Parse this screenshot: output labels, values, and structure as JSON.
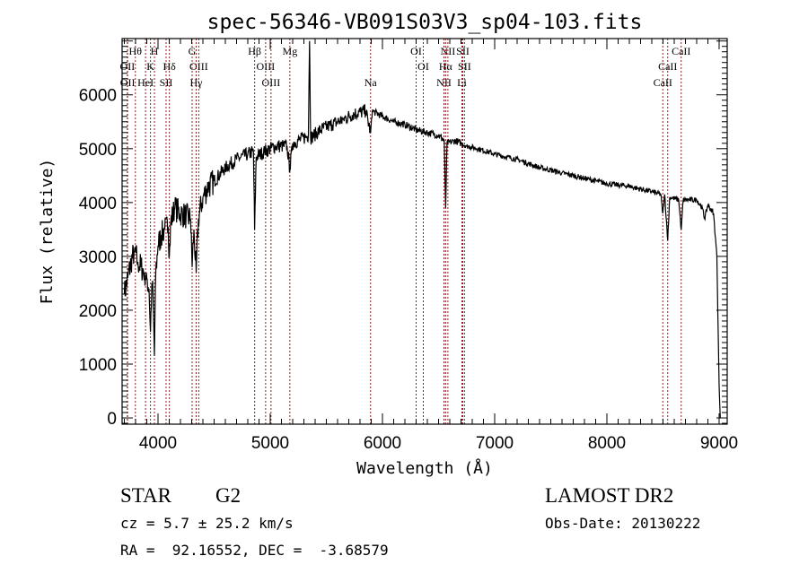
{
  "chart_data": {
    "type": "line",
    "title": "spec-56346-VB091S03V3_sp04-103.fits",
    "xlabel": "Wavelength (Å)",
    "ylabel": "Flux (relative)",
    "xlim": [
      3680,
      9072
    ],
    "ylim": [
      -116,
      7045
    ],
    "xticks": [
      4000,
      5000,
      6000,
      7000,
      8000,
      9000
    ],
    "xtick_labels": [
      "4000",
      "5000",
      "6000",
      "7000",
      "8000",
      "9000"
    ],
    "yticks": [
      0,
      1000,
      2000,
      3000,
      4000,
      5000,
      6000
    ],
    "ytick_labels": [
      "0",
      "1000",
      "2000",
      "3000",
      "4000",
      "5000",
      "6000"
    ],
    "grid": false,
    "series": [
      {
        "name": "flux",
        "points": [
          [
            3700,
            2300
          ],
          [
            3730,
            2600
          ],
          [
            3760,
            2900
          ],
          [
            3790,
            3100
          ],
          [
            3820,
            2900
          ],
          [
            3850,
            2800
          ],
          [
            3880,
            2700
          ],
          [
            3900,
            2600
          ],
          [
            3920,
            2400
          ],
          [
            3933,
            1600
          ],
          [
            3945,
            2500
          ],
          [
            3955,
            2300
          ],
          [
            3968,
            1150
          ],
          [
            3980,
            2700
          ],
          [
            4000,
            3200
          ],
          [
            4030,
            3400
          ],
          [
            4060,
            3500
          ],
          [
            4090,
            3550
          ],
          [
            4101,
            3000
          ],
          [
            4115,
            3650
          ],
          [
            4150,
            3900
          ],
          [
            4200,
            3800
          ],
          [
            4250,
            3750
          ],
          [
            4290,
            3700
          ],
          [
            4304,
            2800
          ],
          [
            4320,
            3500
          ],
          [
            4340,
            2700
          ],
          [
            4360,
            3700
          ],
          [
            4400,
            4100
          ],
          [
            4450,
            4300
          ],
          [
            4500,
            4400
          ],
          [
            4600,
            4650
          ],
          [
            4700,
            4800
          ],
          [
            4800,
            4900
          ],
          [
            4850,
            4950
          ],
          [
            4861,
            3500
          ],
          [
            4875,
            4850
          ],
          [
            4950,
            4950
          ],
          [
            5050,
            5050
          ],
          [
            5150,
            5050
          ],
          [
            5175,
            4600
          ],
          [
            5200,
            5100
          ],
          [
            5300,
            5200
          ],
          [
            5340,
            5250
          ],
          [
            5350,
            7000
          ],
          [
            5360,
            5200
          ],
          [
            5450,
            5350
          ],
          [
            5550,
            5450
          ],
          [
            5650,
            5550
          ],
          [
            5750,
            5650
          ],
          [
            5850,
            5700
          ],
          [
            5894,
            5300
          ],
          [
            5910,
            5700
          ],
          [
            6000,
            5600
          ],
          [
            6100,
            5500
          ],
          [
            6200,
            5450
          ],
          [
            6300,
            5350
          ],
          [
            6400,
            5300
          ],
          [
            6500,
            5250
          ],
          [
            6550,
            5150
          ],
          [
            6563,
            3900
          ],
          [
            6575,
            5100
          ],
          [
            6650,
            5150
          ],
          [
            6750,
            5050
          ],
          [
            6850,
            5000
          ],
          [
            7000,
            4900
          ],
          [
            7200,
            4800
          ],
          [
            7400,
            4650
          ],
          [
            7600,
            4550
          ],
          [
            7800,
            4450
          ],
          [
            8000,
            4350
          ],
          [
            8200,
            4300
          ],
          [
            8400,
            4200
          ],
          [
            8480,
            4150
          ],
          [
            8498,
            3800
          ],
          [
            8515,
            4150
          ],
          [
            8542,
            3300
          ],
          [
            8560,
            4100
          ],
          [
            8640,
            4050
          ],
          [
            8662,
            3500
          ],
          [
            8680,
            4050
          ],
          [
            8800,
            4050
          ],
          [
            8850,
            3900
          ],
          [
            8870,
            3700
          ],
          [
            8900,
            3950
          ],
          [
            8950,
            3800
          ],
          [
            8980,
            3000
          ],
          [
            9000,
            600
          ],
          [
            9010,
            0
          ]
        ]
      }
    ],
    "spectral_lines": [
      {
        "label": "Hθ",
        "wavelength": 3798,
        "row": 1
      },
      {
        "label": "H",
        "wavelength": 3968,
        "row": 1
      },
      {
        "label": "G",
        "wavelength": 4304,
        "row": 1
      },
      {
        "label": "Hβ",
        "wavelength": 4861,
        "row": 1
      },
      {
        "label": "Mg",
        "wavelength": 5175,
        "row": 1
      },
      {
        "label": "OI",
        "wavelength": 6300,
        "row": 1
      },
      {
        "label": "NII",
        "wavelength": 6583,
        "row": 1
      },
      {
        "label": "SII",
        "wavelength": 6716,
        "row": 1
      },
      {
        "label": "CaII",
        "wavelength": 8662,
        "row": 1
      },
      {
        "label": "OII",
        "wavelength": 3727,
        "row": 2
      },
      {
        "label": "K",
        "wavelength": 3933,
        "row": 2
      },
      {
        "label": "Hδ",
        "wavelength": 4101,
        "row": 2
      },
      {
        "label": "OIII",
        "wavelength": 4363,
        "row": 2
      },
      {
        "label": "OIII",
        "wavelength": 4959,
        "row": 2
      },
      {
        "label": "OI",
        "wavelength": 6364,
        "row": 2
      },
      {
        "label": "Hα",
        "wavelength": 6563,
        "row": 2
      },
      {
        "label": "SII",
        "wavelength": 6731,
        "row": 2
      },
      {
        "label": "CaII",
        "wavelength": 8542,
        "row": 2
      },
      {
        "label": "OII",
        "wavelength": 3729,
        "row": 3
      },
      {
        "label": "HeI",
        "wavelength": 3889,
        "row": 3
      },
      {
        "label": "SII",
        "wavelength": 4072,
        "row": 3
      },
      {
        "label": "Hγ",
        "wavelength": 4340,
        "row": 3
      },
      {
        "label": "OIII",
        "wavelength": 5007,
        "row": 3
      },
      {
        "label": "Na",
        "wavelength": 5894,
        "row": 3
      },
      {
        "label": "NII",
        "wavelength": 6548,
        "row": 3
      },
      {
        "label": "Li",
        "wavelength": 6708,
        "row": 3
      },
      {
        "label": "CaII",
        "wavelength": 8498,
        "row": 3
      }
    ],
    "colors": {
      "spectrum": "#000000",
      "lines": "#8b2323"
    }
  },
  "info": {
    "class": "STAR",
    "subclass": "G2",
    "survey": "LAMOST DR2",
    "cz": "cz = 5.7 ± 25.2 km/s",
    "obs_date": "Obs-Date: 20130222",
    "coords": "RA =  92.16552, DEC =  -3.68579"
  }
}
